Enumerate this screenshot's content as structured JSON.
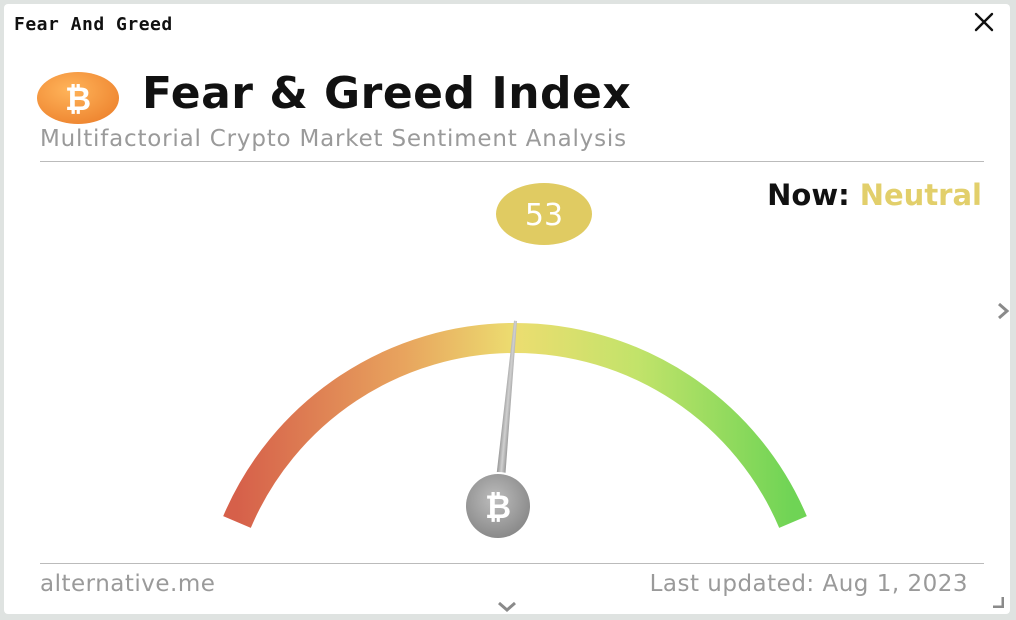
{
  "window": {
    "title": "Fear And Greed"
  },
  "widget": {
    "heading": "Fear & Greed Index",
    "subheading": "Multifactorial Crypto Market Sentiment Analysis",
    "now_label": "Now:",
    "now_value": "Neutral",
    "score": "53",
    "score_value": 53,
    "source": "alternative.me",
    "last_updated": "Last updated: Aug 1, 2023"
  },
  "icons": {
    "logo": "bitcoin-icon",
    "close": "close-icon",
    "next": "chevron-right-icon",
    "down": "chevron-down-icon",
    "resize": "resize-handle-icon"
  },
  "colors": {
    "neutral": "#e2cf6b",
    "score_bubble": "#e0cb62",
    "logo_orange": "#f2923a",
    "fear": "#d6604a",
    "greed": "#6fd455",
    "needle": "#a9a9a9"
  }
}
